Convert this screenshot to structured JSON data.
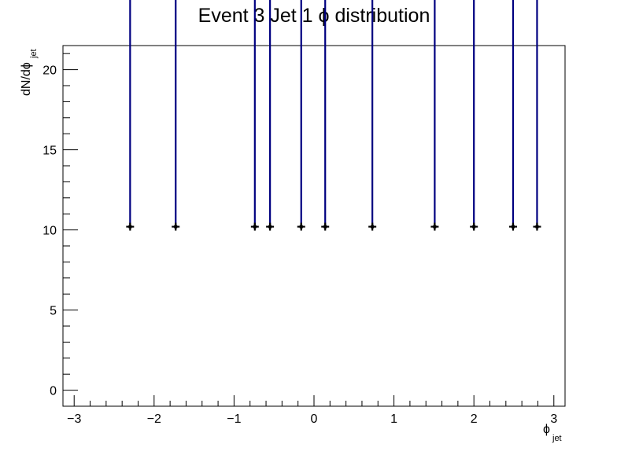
{
  "chart_data": {
    "type": "scatter",
    "title": "Event 3 Jet 1  ϕ distribution",
    "xlabel": "ϕ",
    "xlabel_sub": "jet",
    "ylabel": "dN/dϕ",
    "ylabel_sub": "jet",
    "xlim": [
      -3.14,
      3.14
    ],
    "ylim": [
      -1.0,
      21.5
    ],
    "xticks": [
      -3,
      -2,
      -1,
      0,
      1,
      2,
      3
    ],
    "xtick_labels": [
      "−3",
      "−2",
      "−1",
      "0",
      "1",
      "2",
      "3"
    ],
    "yticks": [
      0,
      5,
      10,
      15,
      20
    ],
    "ytick_labels": [
      "0",
      "5",
      "10",
      "15",
      "20"
    ],
    "grid": false,
    "legend": "none",
    "series": [
      {
        "x": [
          -2.3,
          -1.73,
          -0.74,
          -0.55,
          -0.16,
          0.14,
          0.73,
          1.51,
          2.0,
          2.49,
          2.79
        ],
        "y": [
          10.2,
          10.2,
          10.2,
          10.2,
          10.2,
          10.2,
          10.2,
          10.2,
          10.2,
          10.2,
          10.2
        ],
        "y_err_low": [
          0,
          0,
          0,
          0,
          0,
          0,
          0,
          0,
          0,
          0,
          0
        ],
        "y_err_high": [
          20.4,
          20.4,
          20.4,
          20.4,
          20.4,
          20.4,
          20.4,
          20.4,
          20.4,
          20.4,
          20.4
        ],
        "marker_color": "#000000",
        "error_color": "#000080"
      }
    ]
  }
}
